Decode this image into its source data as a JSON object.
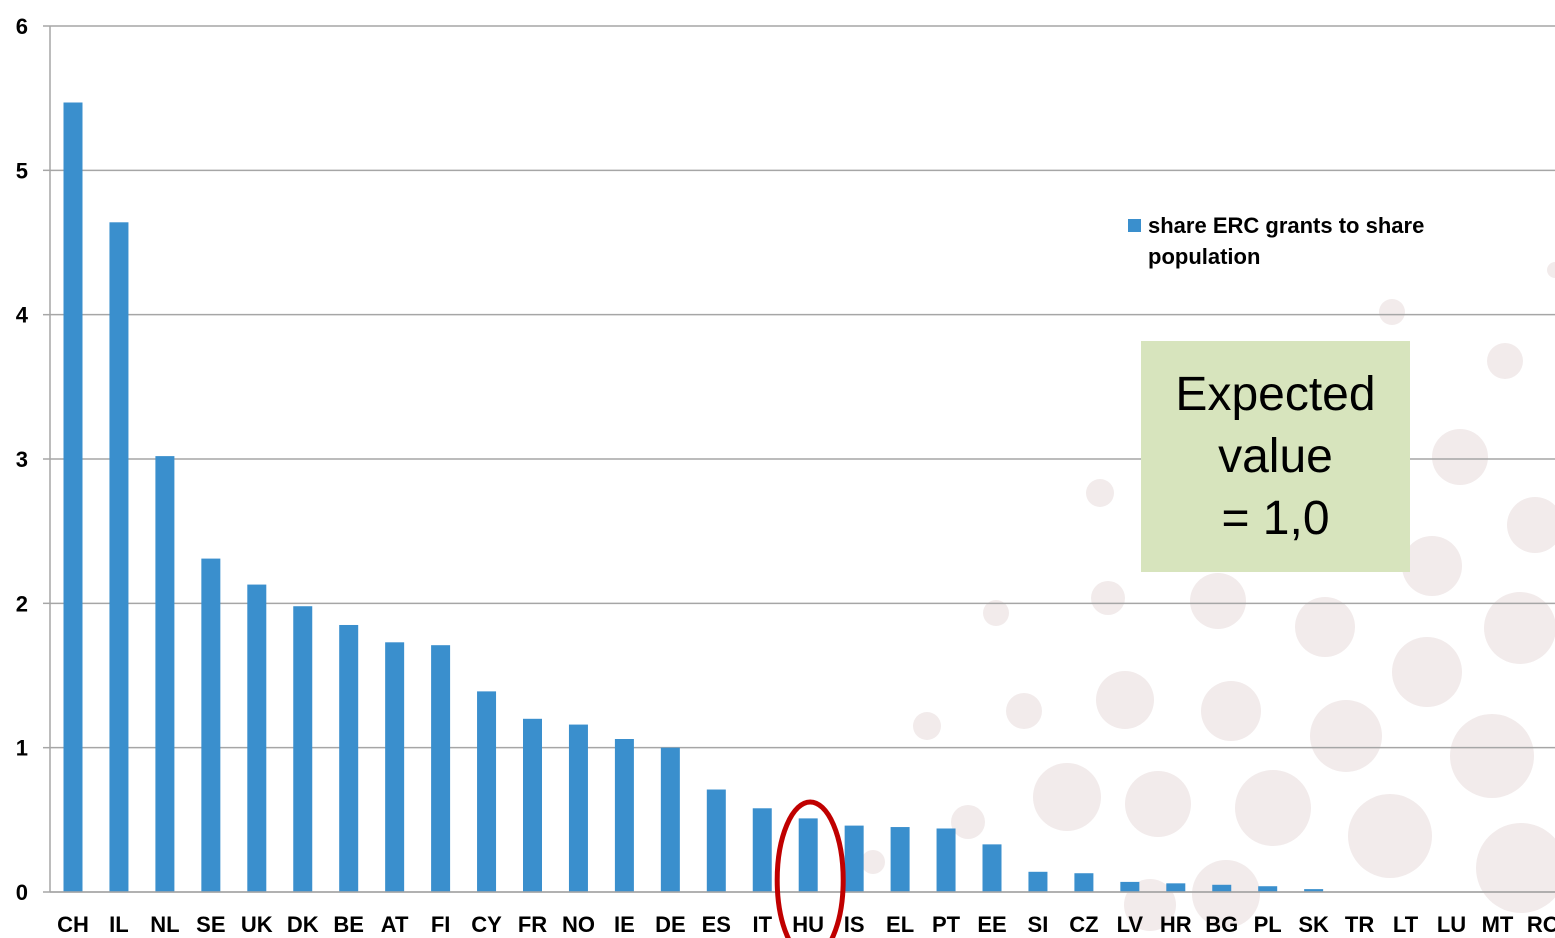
{
  "chart_data": {
    "type": "bar",
    "categories": [
      "CH",
      "IL",
      "NL",
      "SE",
      "UK",
      "DK",
      "BE",
      "AT",
      "FI",
      "CY",
      "FR",
      "NO",
      "IE",
      "DE",
      "ES",
      "IT",
      "HU",
      "IS",
      "EL",
      "PT",
      "EE",
      "SI",
      "CZ",
      "LV",
      "HR",
      "BG",
      "PL",
      "SK",
      "TR",
      "LT",
      "LU",
      "MT",
      "RO"
    ],
    "series": [
      {
        "name": "share ERC grants to share population",
        "color": "#3a8fcd",
        "values": [
          5.47,
          4.64,
          3.02,
          2.31,
          2.13,
          1.98,
          1.85,
          1.73,
          1.71,
          1.39,
          1.2,
          1.16,
          1.06,
          1.0,
          0.71,
          0.58,
          0.51,
          0.46,
          0.45,
          0.44,
          0.33,
          0.14,
          0.13,
          0.07,
          0.06,
          0.05,
          0.04,
          0.02,
          0.0,
          0.0,
          0.0,
          0.0,
          0.0
        ]
      }
    ],
    "yticks": [
      "0",
      "1",
      "2",
      "3",
      "4",
      "5",
      "6"
    ],
    "ylim": [
      0,
      6
    ],
    "grid": true,
    "legend_position": "right",
    "highlighted_category": "HU",
    "highlight_color": "#c00000"
  },
  "annotation": {
    "text": "Expected\nvalue\n= 1,0",
    "background": "#d7e4bd"
  },
  "decoration": {
    "circle_color": "#f2ebeb"
  }
}
